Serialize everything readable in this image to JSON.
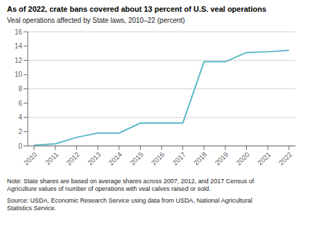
{
  "chart_data": {
    "type": "line",
    "title": "As of 2022, crate bans covered about 13 percent of U.S. veal operations",
    "subtitle": "Veal operations affected by State laws, 2010–22 (percent)",
    "annotations": [
      "Note: State shares are based on average shares across 2007, 2012, and 2017 Census of\nAgriculture values of number of operations with veal calves raised or sold.",
      "Source: USDA, Economic Research Service using data from USDA, National Agricultural\nStatistics Service."
    ],
    "x": [
      2010,
      2011,
      2012,
      2013,
      2014,
      2015,
      2016,
      2017,
      2018,
      2019,
      2020,
      2021,
      2022
    ],
    "values": [
      0.1,
      0.3,
      1.2,
      1.8,
      1.8,
      3.2,
      3.2,
      3.2,
      11.8,
      11.8,
      13.1,
      13.2,
      13.4
    ],
    "color": "#5ab8c8",
    "xlim": [
      2009.7,
      2022.3
    ],
    "xticks": [
      2010,
      2011,
      2012,
      2013,
      2014,
      2015,
      2016,
      2017,
      2018,
      2019,
      2020,
      2021,
      2022
    ],
    "ylim": [
      0,
      16
    ],
    "yticks": [
      0,
      2,
      4,
      6,
      8,
      10,
      12,
      14,
      16
    ],
    "grid": "y"
  }
}
